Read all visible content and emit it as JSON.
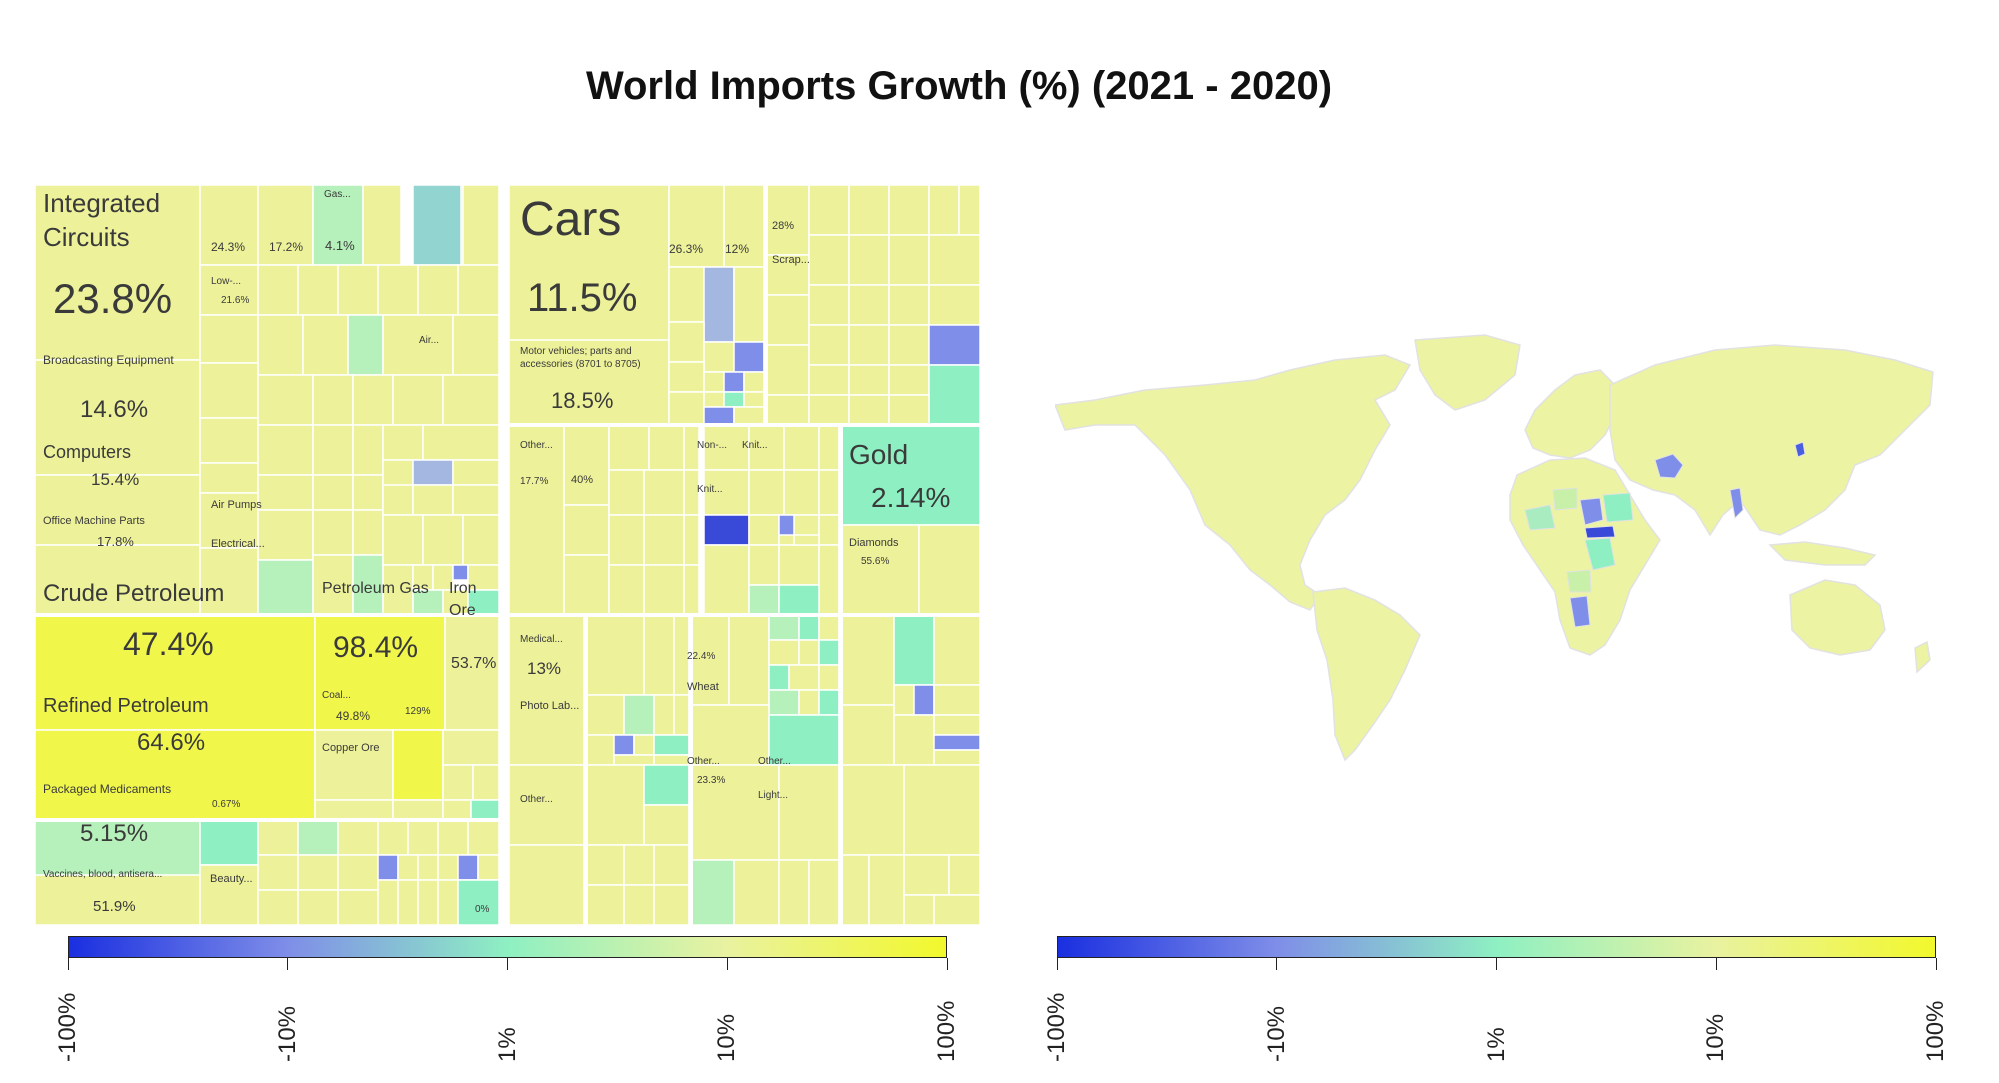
{
  "title": "World Imports Growth (%) (2021 - 2020)",
  "colors": {
    "c_neg100": "#1a2fe0",
    "c_neg10": "#7f8ee8",
    "c_1": "#8ef0c2",
    "c_10": "#e9f2a0",
    "c_100": "#f2f82c"
  },
  "colorbar_left": {
    "ticks": [
      "-100%",
      "-10%",
      "1%",
      "10%",
      "100%"
    ]
  },
  "colorbar_right": {
    "ticks": [
      "-100%",
      "-10%",
      "1%",
      "10%",
      "100%"
    ]
  },
  "chart_data": [
    {
      "type": "treemap",
      "labeled_tiles": [
        {
          "name": "Integrated Circuits",
          "value": "23.8%"
        },
        {
          "name": "Broadcasting Equipment",
          "value": "14.6%"
        },
        {
          "name": "Computers",
          "value": "15.4%"
        },
        {
          "name": "Office Machine Parts",
          "value": "17.8%"
        },
        {
          "name": "Crude Petroleum",
          "value": "47.4%"
        },
        {
          "name": "Petroleum Gas",
          "value": "98.4%"
        },
        {
          "name": "Iron Ore",
          "value": "53.7%"
        },
        {
          "name": "Refined Petroleum",
          "value": "64.6%"
        },
        {
          "name": "Coal...",
          "value": "49.8%"
        },
        {
          "name": "",
          "value": "129%"
        },
        {
          "name": "Copper Ore",
          "value": ""
        },
        {
          "name": "Packaged Medicaments",
          "value": "5.15%"
        },
        {
          "name": "",
          "value": "0.67%"
        },
        {
          "name": "Vaccines, blood, antisera...",
          "value": "51.9%"
        },
        {
          "name": "Beauty...",
          "value": ""
        },
        {
          "name": "",
          "value": "0%"
        },
        {
          "name": "Cars",
          "value": "11.5%"
        },
        {
          "name": "Motor vehicles; parts and accessories (8701 to 8705)",
          "value": "18.5%"
        },
        {
          "name": "",
          "value": "26.3%"
        },
        {
          "name": "",
          "value": "12%"
        },
        {
          "name": "",
          "value": "28%"
        },
        {
          "name": "Scrap...",
          "value": ""
        },
        {
          "name": "",
          "value": "24.3%"
        },
        {
          "name": "",
          "value": "17.2%"
        },
        {
          "name": "Gas...",
          "value": "4.1%"
        },
        {
          "name": "Low-...",
          "value": "21.6%"
        },
        {
          "name": "Air...",
          "value": ""
        },
        {
          "name": "Air Pumps",
          "value": ""
        },
        {
          "name": "Electrical...",
          "value": ""
        },
        {
          "name": "Gold",
          "value": "2.14%"
        },
        {
          "name": "Diamonds",
          "value": "55.6%"
        },
        {
          "name": "Other...",
          "value": "17.7%"
        },
        {
          "name": "",
          "value": "40%"
        },
        {
          "name": "Non-...",
          "value": ""
        },
        {
          "name": "Knit...",
          "value": ""
        },
        {
          "name": "Knit...",
          "value": ""
        },
        {
          "name": "Medical...",
          "value": "13%"
        },
        {
          "name": "Photo Lab...",
          "value": ""
        },
        {
          "name": "",
          "value": "22.4%"
        },
        {
          "name": "Wheat",
          "value": ""
        },
        {
          "name": "Other...",
          "value": ""
        },
        {
          "name": "Other...",
          "value": "23.3%"
        },
        {
          "name": "Other...",
          "value": ""
        },
        {
          "name": "Light...",
          "value": ""
        }
      ]
    },
    {
      "type": "choropleth",
      "color_scale": [
        "-100%",
        "-10%",
        "1%",
        "10%",
        "100%"
      ]
    }
  ],
  "treemap_text": {
    "ic_name1": "Integrated",
    "ic_name2": "Circuits",
    "ic_val": "23.8%",
    "be_name": "Broadcasting Equipment",
    "be_val": "14.6%",
    "comp_name": "Computers",
    "comp_val": "15.4%",
    "omp_name": "Office Machine Parts",
    "omp_val": "17.8%",
    "t243": "24.3%",
    "t172": "17.2%",
    "gas_name": "Gas...",
    "gas_val": "4.1%",
    "low_name": "Low-...",
    "low_val": "21.6%",
    "air_name": "Air...",
    "airpumps": "Air Pumps",
    "elec": "Electrical...",
    "cp_name": "Crude Petroleum",
    "cp_val": "47.4%",
    "pg_name": "Petroleum Gas",
    "pg_val": "98.4%",
    "io_name1": "Iron",
    "io_name2": "Ore",
    "io_val": "53.7%",
    "rp_name": "Refined Petroleum",
    "rp_val": "64.6%",
    "coal_name": "Coal...",
    "coal_val": "49.8%",
    "t129": "129%",
    "copper": "Copper Ore",
    "pm_name": "Packaged Medicaments",
    "pm_val": "5.15%",
    "t067": "0.67%",
    "vac_name": "Vaccines, blood, antisera...",
    "vac_val": "51.9%",
    "beauty": "Beauty...",
    "t0": "0%",
    "cars_name": "Cars",
    "cars_val": "11.5%",
    "mv_name1": "Motor vehicles; parts and",
    "mv_name2": "accessories (8701 to 8705)",
    "mv_val": "18.5%",
    "t263": "26.3%",
    "t12": "12%",
    "t28": "28%",
    "scrap": "Scrap...",
    "other1": "Other...",
    "t177": "17.7%",
    "t40": "40%",
    "non": "Non-...",
    "knit1": "Knit...",
    "knit2": "Knit...",
    "gold_name": "Gold",
    "gold_val": "2.14%",
    "diam_name": "Diamonds",
    "diam_val": "55.6%",
    "med_name": "Medical...",
    "med_val": "13%",
    "photo": "Photo Lab...",
    "t224": "22.4%",
    "wheat": "Wheat",
    "other2": "Other...",
    "other3": "Other...",
    "t233": "23.3%",
    "other4": "Other...",
    "light": "Light..."
  }
}
